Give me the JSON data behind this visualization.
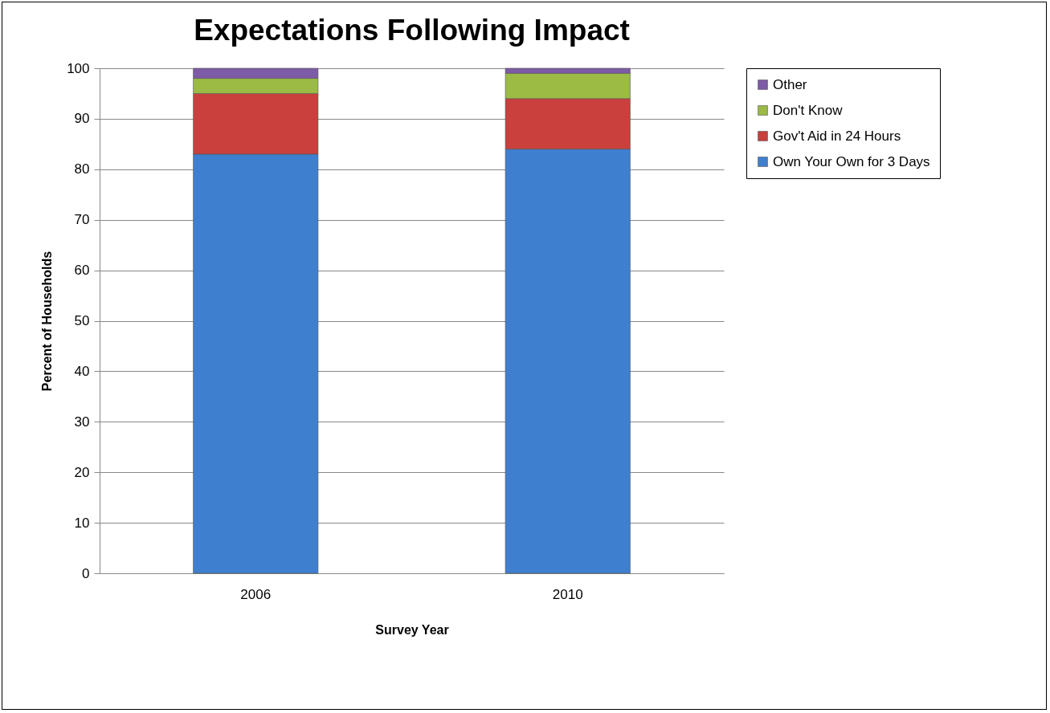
{
  "chart_data": {
    "type": "bar",
    "title": "Expectations Following Impact",
    "xlabel": "Survey Year",
    "ylabel": "Percent of Households",
    "categories": [
      "2006",
      "2010"
    ],
    "stacked": true,
    "series": [
      {
        "name": "Own Your Own for 3 Days",
        "color": "#3f7fd0",
        "values": [
          83,
          84
        ]
      },
      {
        "name": "Gov't Aid in 24 Hours",
        "color": "#c9403c",
        "values": [
          12,
          10
        ]
      },
      {
        "name": "Don't Know",
        "color": "#9bbb45",
        "values": [
          3,
          5
        ]
      },
      {
        "name": "Other",
        "color": "#7e5ba6",
        "values": [
          2,
          1
        ]
      }
    ],
    "ylim": [
      0,
      100
    ],
    "yticks": [
      0,
      10,
      20,
      30,
      40,
      50,
      60,
      70,
      80,
      90,
      100
    ],
    "grid": "y",
    "legend": "right"
  }
}
